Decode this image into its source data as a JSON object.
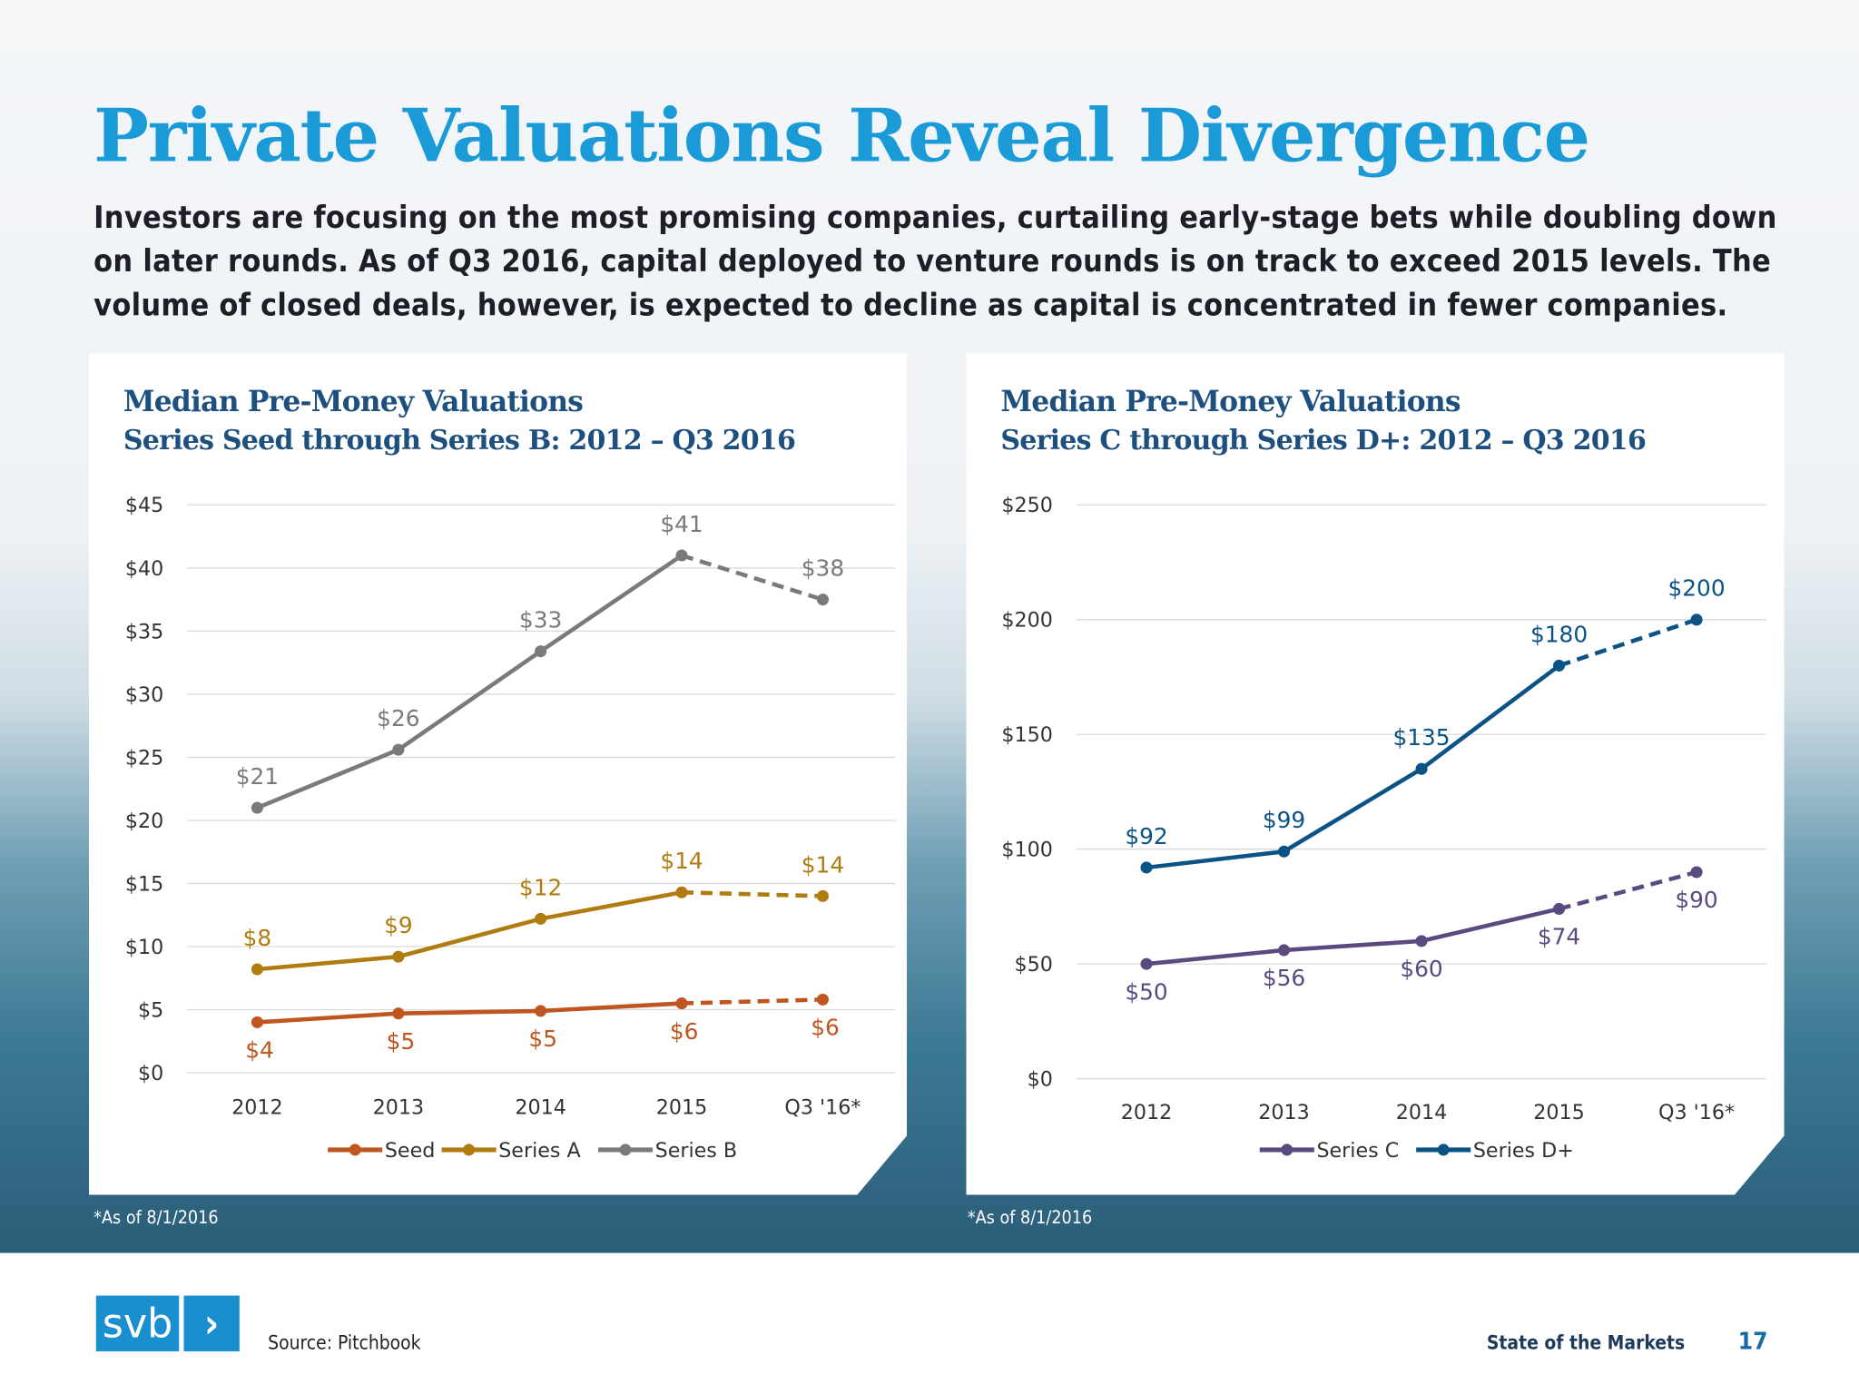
{
  "title": "Private Valuations Reveal Divergence",
  "intro": "Investors are focusing on the most promising companies, curtailing early-stage bets while doubling down on later rounds. As of Q3 2016, capital deployed to venture rounds is on track to exceed 2015 levels. The volume of closed deals, however, is expected to decline as capital is concentrated in fewer companies.",
  "footer": {
    "logo_text": "svb",
    "logo_chevron": "›",
    "source": "Source: Pitchbook",
    "publication": "State of the Markets",
    "page_number": "17"
  },
  "chart_data": [
    {
      "type": "line",
      "title": "Median Pre-Money Valuations",
      "subtitle": "Series Seed through Series B: 2012 – Q3 2016",
      "categories": [
        "2012",
        "2013",
        "2014",
        "2015",
        "Q3 '16*"
      ],
      "ylim": [
        0,
        45
      ],
      "yticks": [
        0,
        5,
        10,
        15,
        20,
        25,
        30,
        35,
        40,
        45
      ],
      "ytick_labels": [
        "$0",
        "$5",
        "$10",
        "$15",
        "$20",
        "$25",
        "$30",
        "$35",
        "$40",
        "$45"
      ],
      "grid": true,
      "legend": "bottom",
      "projection_dashed_from": "2015",
      "footnote": "*As of 8/1/2016",
      "series": [
        {
          "name": "Seed",
          "color": "#c0561f",
          "values": [
            4.0,
            4.7,
            4.9,
            5.5,
            5.8
          ],
          "labels": [
            "$4",
            "$5",
            "$5",
            "$6",
            "$6"
          ],
          "label_pos": "below"
        },
        {
          "name": "Series A",
          "color": "#b07c10",
          "values": [
            8.2,
            9.2,
            12.2,
            14.3,
            14.0
          ],
          "labels": [
            "$8",
            "$9",
            "$12",
            "$14",
            "$14"
          ],
          "label_pos": "above"
        },
        {
          "name": "Series B",
          "color": "#7a7a7a",
          "values": [
            21.0,
            25.6,
            33.4,
            41.0,
            37.5
          ],
          "labels": [
            "$21",
            "$26",
            "$33",
            "$41",
            "$38"
          ],
          "label_pos": "above"
        }
      ]
    },
    {
      "type": "line",
      "title": "Median Pre-Money Valuations",
      "subtitle": "Series C through Series D+: 2012 – Q3 2016",
      "categories": [
        "2012",
        "2013",
        "2014",
        "2015",
        "Q3 '16*"
      ],
      "ylim": [
        0,
        250
      ],
      "yticks": [
        0,
        50,
        100,
        150,
        200,
        250
      ],
      "ytick_labels": [
        "$0",
        "$50",
        "$100",
        "$150",
        "$200",
        "$250"
      ],
      "grid": true,
      "legend": "bottom",
      "projection_dashed_from": "2015",
      "footnote": "*As of 8/1/2016",
      "series": [
        {
          "name": "Series C",
          "color": "#5b4a80",
          "values": [
            50,
            56,
            60,
            74,
            90
          ],
          "labels": [
            "$50",
            "$56",
            "$60",
            "$74",
            "$90"
          ],
          "label_pos": "below"
        },
        {
          "name": "Series D+",
          "color": "#0b5385",
          "values": [
            92,
            99,
            135,
            180,
            200
          ],
          "labels": [
            "$92",
            "$99",
            "$135",
            "$180",
            "$200"
          ],
          "label_pos": "above"
        }
      ]
    }
  ]
}
